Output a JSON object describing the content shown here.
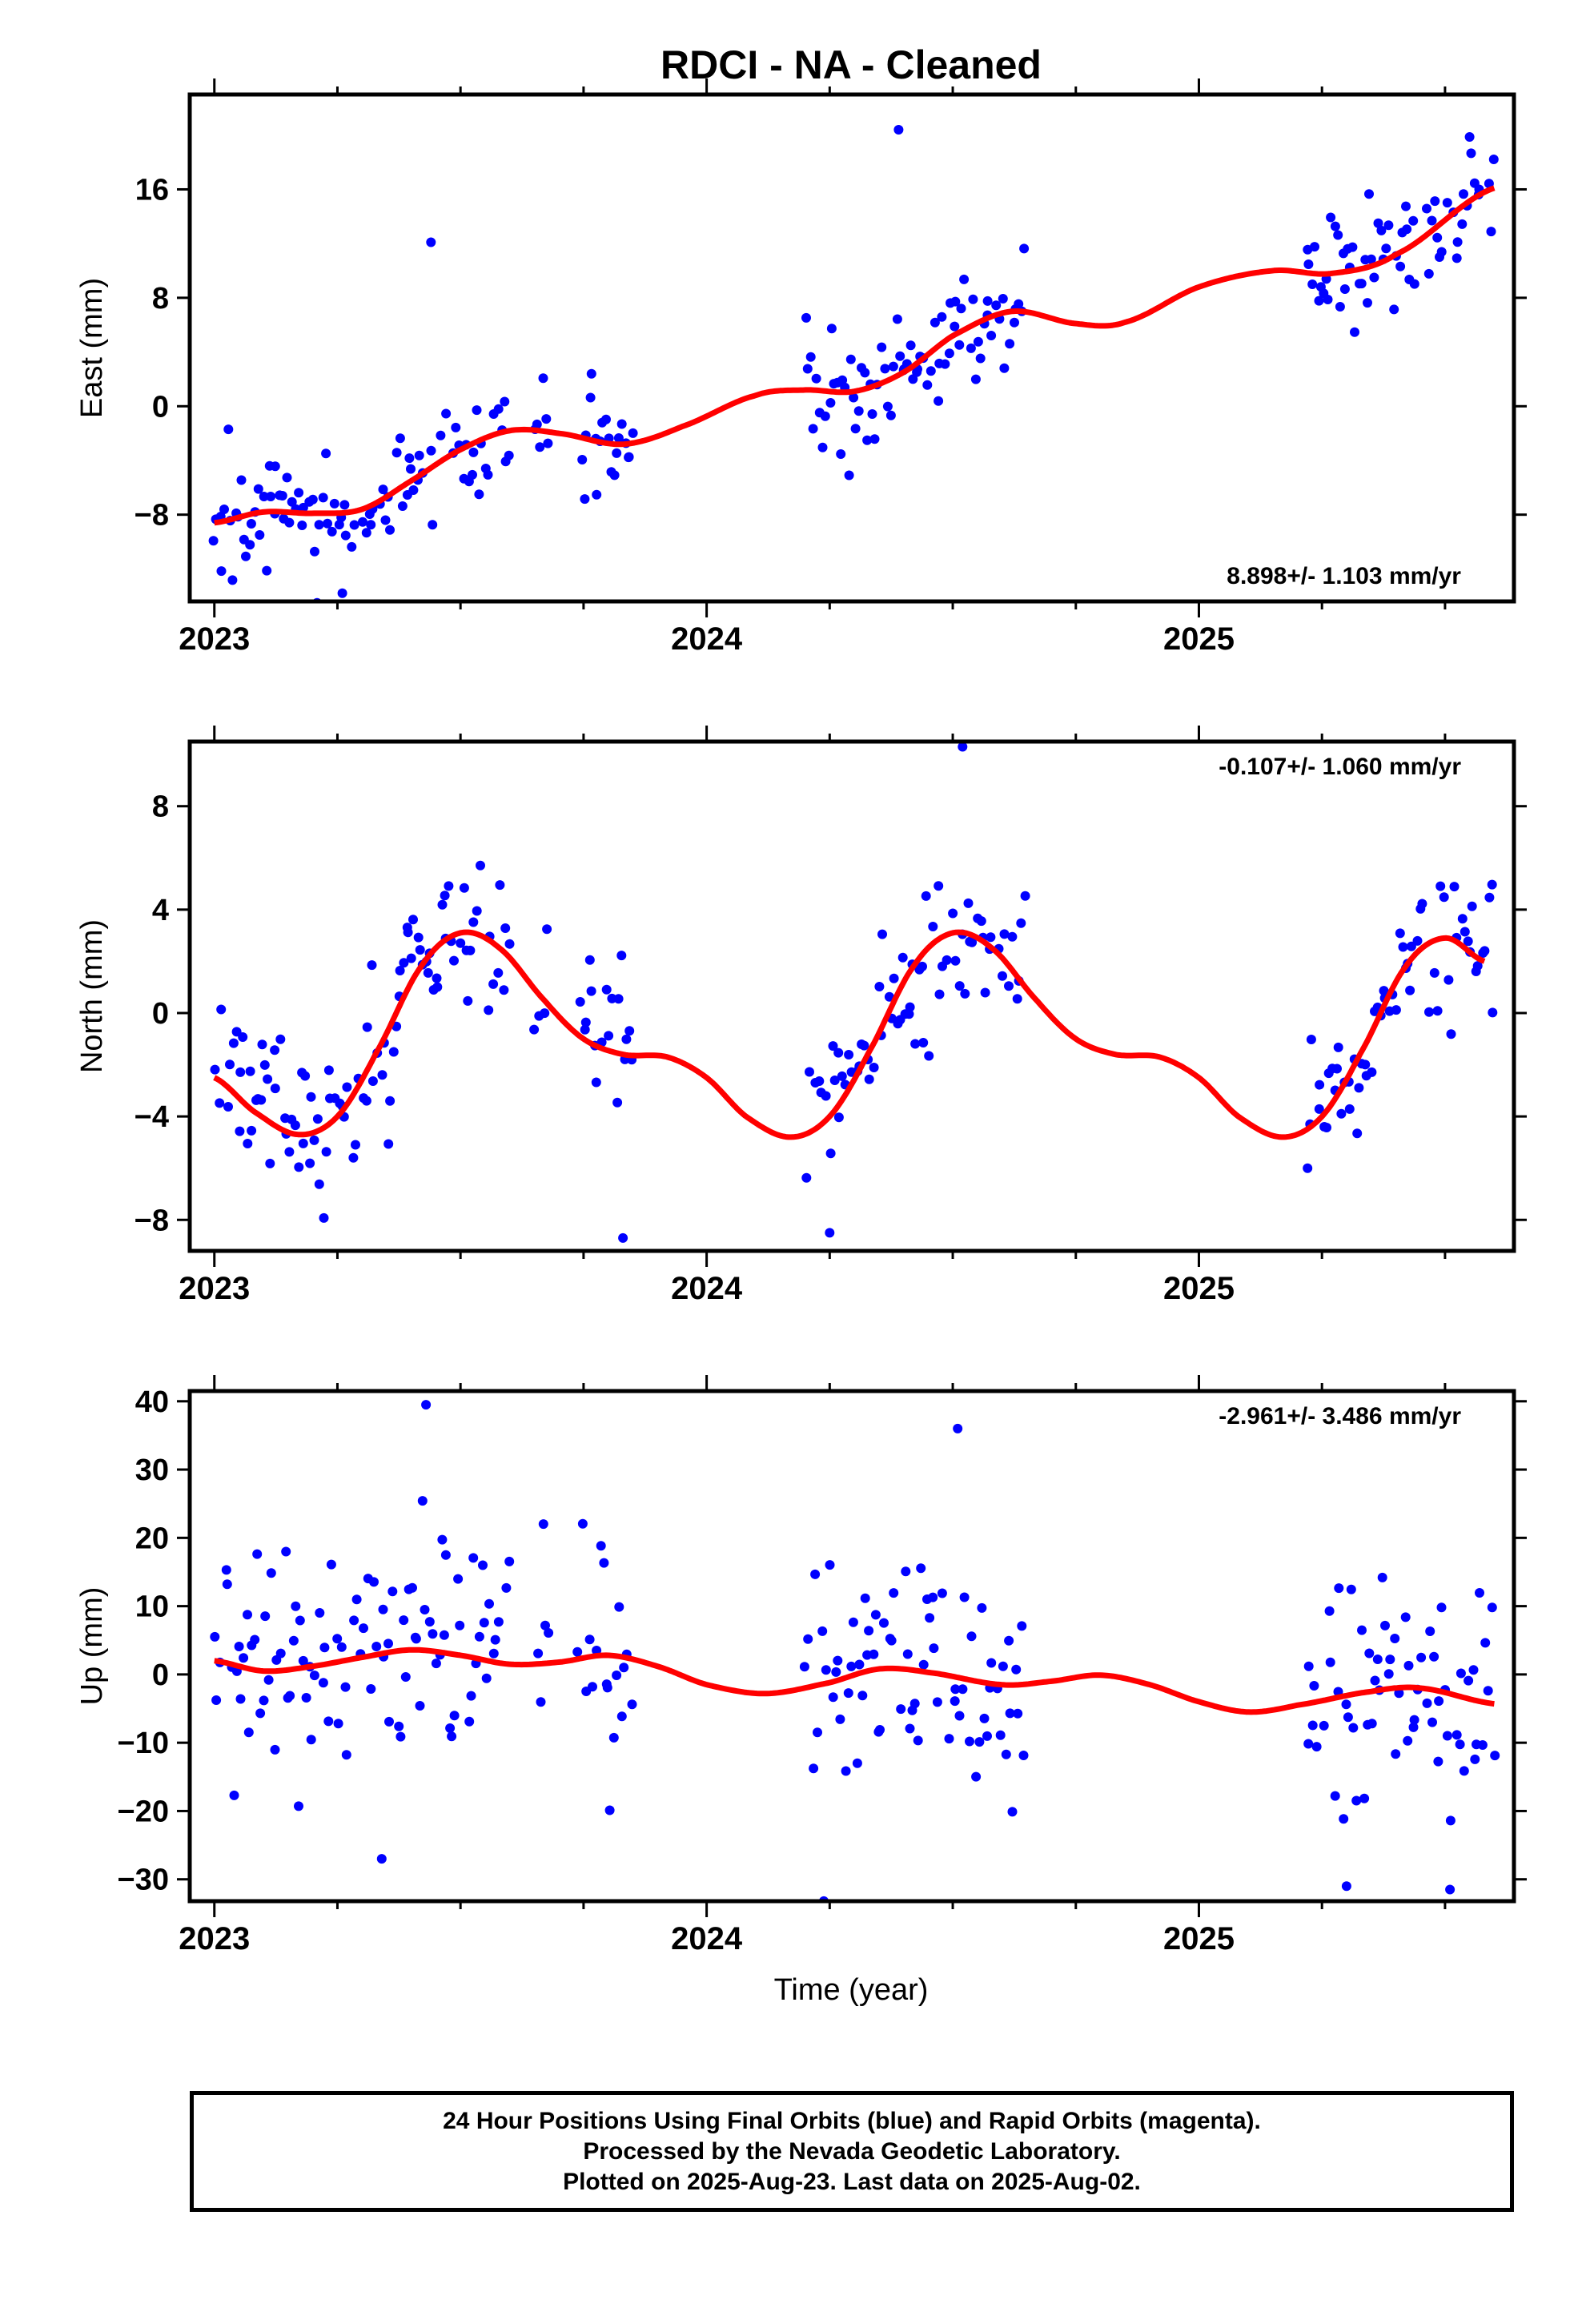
{
  "title": "RDCI  - NA - Cleaned",
  "xlabel": "Time (year)",
  "colors": {
    "points": "#0000ff",
    "fit": "#ff0000",
    "frame": "#000000"
  },
  "footer": {
    "line1": "24 Hour Positions Using Final Orbits (blue) and Rapid Orbits (magenta).",
    "line2": "Processed by the Nevada Geodetic Laboratory.",
    "line3": "Plotted on 2025-Aug-23. Last data on 2025-Aug-02."
  },
  "chart_data": [
    {
      "type": "scatter",
      "panel": "east",
      "ylabel": "East (mm)",
      "rate_label": "8.898+/- 1.103 mm/yr",
      "xlim": [
        2022.95,
        2025.64
      ],
      "ylim": [
        -14.4,
        23.0
      ],
      "xticks": [
        2023,
        2024,
        2025
      ],
      "yticks": [
        -8,
        0,
        8,
        16
      ],
      "fit_anchors": [
        [
          2023.0,
          -8.6
        ],
        [
          2023.1,
          -7.8
        ],
        [
          2023.2,
          -7.9
        ],
        [
          2023.3,
          -7.6
        ],
        [
          2023.4,
          -5.5
        ],
        [
          2023.5,
          -3.2
        ],
        [
          2023.6,
          -1.8
        ],
        [
          2023.7,
          -2.0
        ],
        [
          2023.83,
          -2.8
        ],
        [
          2023.95,
          -1.5
        ],
        [
          2024.1,
          0.8
        ],
        [
          2024.2,
          1.2
        ],
        [
          2024.3,
          1.1
        ],
        [
          2024.4,
          2.5
        ],
        [
          2024.5,
          5.2
        ],
        [
          2024.62,
          7.0
        ],
        [
          2024.75,
          6.1
        ],
        [
          2024.85,
          6.2
        ],
        [
          2025.0,
          8.8
        ],
        [
          2025.15,
          10.0
        ],
        [
          2025.27,
          9.8
        ],
        [
          2025.4,
          11.2
        ],
        [
          2025.6,
          16.1
        ]
      ],
      "scatter_sd": 2.4,
      "spikes": [
        [
          2023.44,
          12.1
        ],
        [
          2024.39,
          20.4
        ],
        [
          2023.26,
          -13.8
        ]
      ],
      "data_segments": [
        [
          2023.0,
          2023.28
        ],
        [
          2023.28,
          2023.6
        ],
        [
          2023.65,
          2023.68
        ],
        [
          2023.74,
          2023.85
        ],
        [
          2024.2,
          2024.65
        ],
        [
          2025.22,
          2025.6
        ]
      ]
    },
    {
      "type": "scatter",
      "panel": "north",
      "ylabel": "North (mm)",
      "rate_label": "-0.107+/- 1.060 mm/yr",
      "xlim": [
        2022.95,
        2025.64
      ],
      "ylim": [
        -9.2,
        10.5
      ],
      "xticks": [
        2023,
        2024,
        2025
      ],
      "yticks": [
        -8,
        -4,
        0,
        4,
        8
      ],
      "fit_anchors": [
        [
          2023.0,
          -2.5
        ],
        [
          2023.08,
          -3.8
        ],
        [
          2023.17,
          -4.7
        ],
        [
          2023.25,
          -4.0
        ],
        [
          2023.33,
          -1.5
        ],
        [
          2023.42,
          1.8
        ],
        [
          2023.5,
          3.1
        ],
        [
          2023.58,
          2.5
        ],
        [
          2023.67,
          0.5
        ],
        [
          2023.75,
          -1.0
        ],
        [
          2023.83,
          -1.6
        ],
        [
          2023.92,
          -1.7
        ],
        [
          2024.0,
          -2.5
        ],
        [
          2024.08,
          -4.0
        ],
        [
          2024.17,
          -4.8
        ],
        [
          2024.25,
          -4.0
        ],
        [
          2024.33,
          -1.5
        ],
        [
          2024.42,
          1.8
        ],
        [
          2024.5,
          3.1
        ],
        [
          2024.58,
          2.5
        ],
        [
          2024.67,
          0.5
        ],
        [
          2024.75,
          -1.0
        ],
        [
          2024.83,
          -1.6
        ],
        [
          2024.92,
          -1.7
        ],
        [
          2025.0,
          -2.5
        ],
        [
          2025.08,
          -4.0
        ],
        [
          2025.17,
          -4.8
        ],
        [
          2025.25,
          -4.0
        ],
        [
          2025.33,
          -1.5
        ],
        [
          2025.42,
          1.8
        ],
        [
          2025.5,
          2.9
        ],
        [
          2025.58,
          2.0
        ]
      ],
      "scatter_sd": 1.7,
      "spikes": [
        [
          2024.52,
          10.3
        ],
        [
          2023.83,
          -8.7
        ],
        [
          2024.25,
          -8.5
        ]
      ],
      "data_segments": [
        [
          2023.0,
          2023.28
        ],
        [
          2023.28,
          2023.6
        ],
        [
          2023.65,
          2023.68
        ],
        [
          2023.74,
          2023.85
        ],
        [
          2024.2,
          2024.65
        ],
        [
          2025.22,
          2025.6
        ]
      ]
    },
    {
      "type": "scatter",
      "panel": "up",
      "ylabel": "Up (mm)",
      "rate_label": "-2.961+/- 3.486 mm/yr",
      "xlim": [
        2022.95,
        2025.64
      ],
      "ylim": [
        -33.2,
        41.5
      ],
      "xticks": [
        2023,
        2024,
        2025
      ],
      "yticks": [
        -30,
        -20,
        -10,
        0,
        10,
        20,
        30,
        40
      ],
      "fit_anchors": [
        [
          2023.0,
          2.0
        ],
        [
          2023.1,
          0.5
        ],
        [
          2023.2,
          1.2
        ],
        [
          2023.3,
          2.5
        ],
        [
          2023.4,
          3.6
        ],
        [
          2023.5,
          2.8
        ],
        [
          2023.6,
          1.5
        ],
        [
          2023.7,
          1.8
        ],
        [
          2023.8,
          2.8
        ],
        [
          2023.9,
          1.2
        ],
        [
          2024.0,
          -1.5
        ],
        [
          2024.12,
          -2.8
        ],
        [
          2024.25,
          -1.2
        ],
        [
          2024.35,
          0.8
        ],
        [
          2024.45,
          0.3
        ],
        [
          2024.6,
          -1.5
        ],
        [
          2024.7,
          -1.0
        ],
        [
          2024.8,
          -0.1
        ],
        [
          2024.9,
          -1.5
        ],
        [
          2025.0,
          -4.0
        ],
        [
          2025.1,
          -5.5
        ],
        [
          2025.2,
          -4.5
        ],
        [
          2025.35,
          -2.5
        ],
        [
          2025.45,
          -2.0
        ],
        [
          2025.6,
          -4.3
        ]
      ],
      "scatter_sd": 9.0,
      "spikes": [
        [
          2023.43,
          39.5
        ],
        [
          2024.51,
          36.0
        ],
        [
          2023.34,
          -27.0
        ],
        [
          2025.3,
          -31.0
        ],
        [
          2025.51,
          -31.5
        ]
      ],
      "data_segments": [
        [
          2023.0,
          2023.28
        ],
        [
          2023.28,
          2023.6
        ],
        [
          2023.65,
          2023.68
        ],
        [
          2023.74,
          2023.85
        ],
        [
          2024.2,
          2024.65
        ],
        [
          2025.22,
          2025.6
        ]
      ]
    }
  ]
}
